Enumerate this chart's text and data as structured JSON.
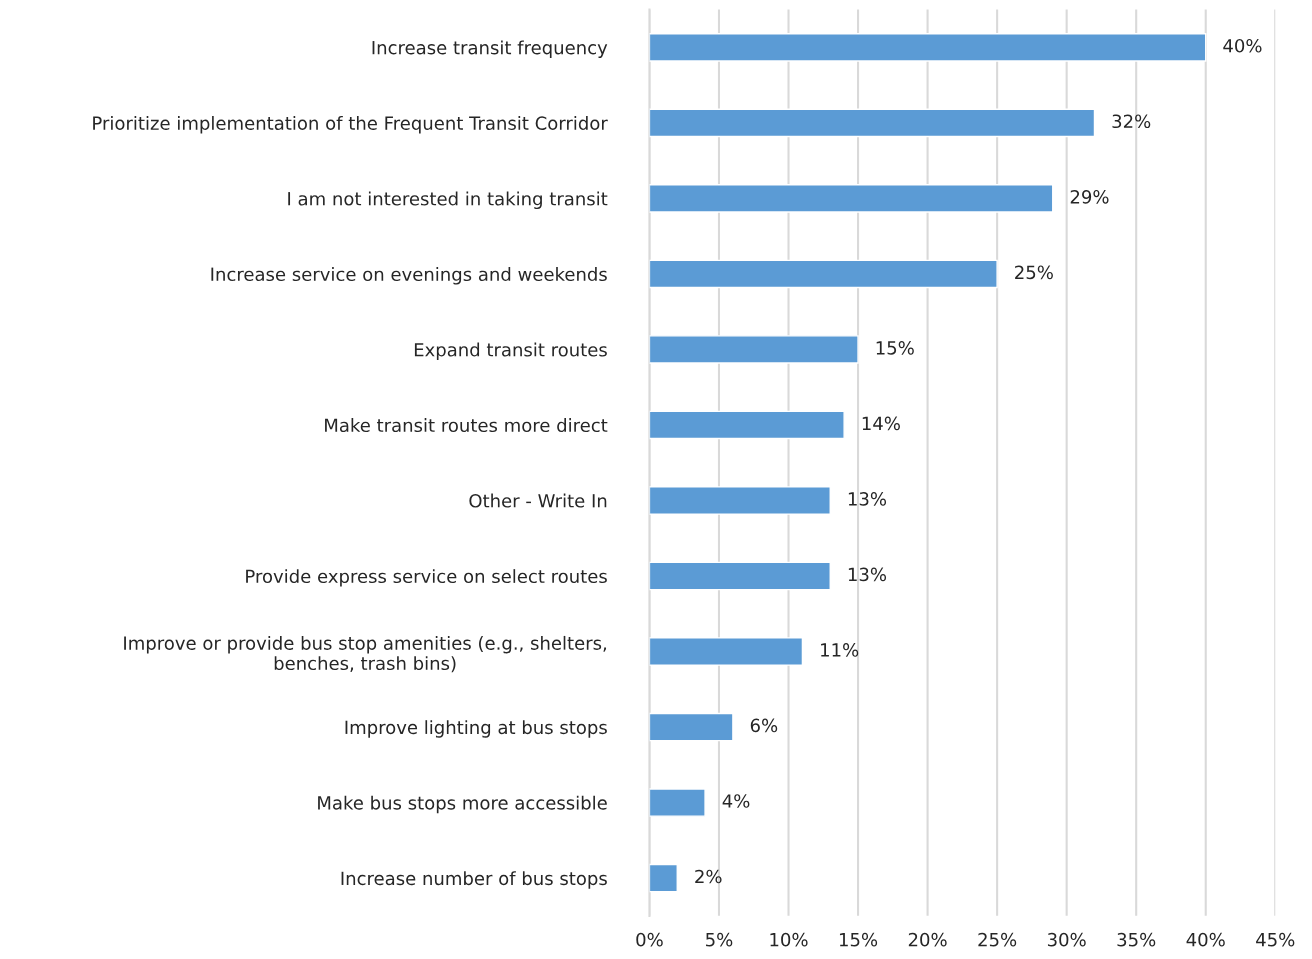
{
  "chart_data": {
    "type": "bar",
    "orientation": "horizontal",
    "categories": [
      "Increase transit frequency",
      "Prioritize implementation of the Frequent Transit Corridor",
      "I am not interested in taking transit",
      "Increase service on evenings and weekends",
      "Expand transit routes",
      "Make transit routes more direct",
      "Other - Write In",
      "Provide express service on select routes",
      "Improve or provide bus stop amenities (e.g., shelters,\nbenches, trash bins)",
      "Improve lighting at bus stops",
      "Make bus stops more accessible",
      "Increase number of bus stops"
    ],
    "values": [
      40,
      32,
      29,
      25,
      15,
      14,
      13,
      13,
      11,
      6,
      4,
      2
    ],
    "value_labels": [
      "40%",
      "32%",
      "29%",
      "25%",
      "15%",
      "14%",
      "13%",
      "13%",
      "11%",
      "6%",
      "4%",
      "2%"
    ],
    "color": "#5b9bd5",
    "xlim": [
      0,
      45
    ],
    "xticks": [
      {
        "value": 0,
        "label": "0%"
      },
      {
        "value": 5,
        "label": "5%"
      },
      {
        "value": 10,
        "label": "10%"
      },
      {
        "value": 15,
        "label": "15%"
      },
      {
        "value": 20,
        "label": "20%"
      },
      {
        "value": 25,
        "label": "25%"
      },
      {
        "value": 30,
        "label": "30%"
      },
      {
        "value": 35,
        "label": "35%"
      },
      {
        "value": 40,
        "label": "40%"
      },
      {
        "value": 45,
        "label": "45%"
      }
    ],
    "grid": "x",
    "legend": false
  }
}
